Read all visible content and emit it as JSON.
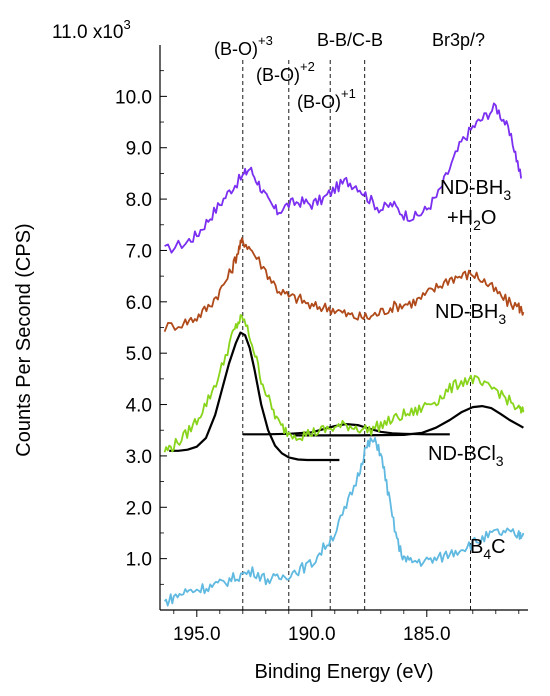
{
  "chart_data": {
    "type": "line",
    "title": "",
    "xlabel": "Binding Energy (eV)",
    "ylabel": "Counts Per Second (CPS)",
    "xlim": [
      196.6,
      180.6
    ],
    "x_reversed": true,
    "ylim": [
      0,
      11.0
    ],
    "y_scale_label": "11.0 x10",
    "y_scale_exponent": "3",
    "x_ticks": [
      {
        "value": 195.0,
        "label": "195.0"
      },
      {
        "value": 190.0,
        "label": "190.0"
      },
      {
        "value": 185.0,
        "label": "185.0"
      }
    ],
    "y_ticks": [
      {
        "value": 1.0,
        "label": "1.0"
      },
      {
        "value": 2.0,
        "label": "2.0"
      },
      {
        "value": 3.0,
        "label": "3.0"
      },
      {
        "value": 4.0,
        "label": "4.0"
      },
      {
        "value": 5.0,
        "label": "5.0"
      },
      {
        "value": 6.0,
        "label": "6.0"
      },
      {
        "value": 7.0,
        "label": "7.0"
      },
      {
        "value": 8.0,
        "label": "8.0"
      },
      {
        "value": 9.0,
        "label": "9.0"
      },
      {
        "value": 10.0,
        "label": "10.0"
      }
    ],
    "grid": false,
    "reference_lines": [
      {
        "x": 193.0,
        "label": "(B-O)",
        "sup": "+3"
      },
      {
        "x": 191.0,
        "label": "(B-O)",
        "sup": "+2"
      },
      {
        "x": 189.2,
        "label": "(B-O)",
        "sup": "+1"
      },
      {
        "x": 187.7,
        "label": "B-B/C-B",
        "sup": ""
      },
      {
        "x": 183.1,
        "label": "Br3p/?",
        "sup": ""
      }
    ],
    "series": [
      {
        "name": "ND-BH3 +H2O",
        "color": "#7b2ff0",
        "x": [
          196.4,
          195.5,
          195.0,
          194.5,
          194.0,
          193.5,
          193.0,
          192.7,
          192.3,
          191.9,
          191.5,
          191.0,
          190.5,
          190.0,
          189.5,
          189.0,
          188.5,
          188.0,
          187.5,
          187.0,
          186.5,
          186.0,
          185.5,
          185.0,
          184.5,
          184.0,
          183.5,
          183.0,
          182.5,
          182.0,
          181.6,
          181.2,
          180.9
        ],
        "y": [
          7.0,
          7.15,
          7.3,
          7.6,
          7.9,
          8.2,
          8.45,
          8.6,
          8.3,
          7.95,
          7.75,
          7.9,
          7.95,
          7.9,
          8.0,
          8.2,
          8.35,
          8.25,
          8.0,
          7.8,
          7.9,
          7.7,
          7.65,
          7.8,
          8.1,
          8.6,
          9.1,
          9.4,
          9.6,
          9.8,
          9.5,
          9.0,
          8.4
        ]
      },
      {
        "name": "ND-BH3",
        "color": "#b04a1a",
        "x": [
          196.4,
          195.5,
          195.0,
          194.5,
          194.0,
          193.5,
          193.2,
          193.0,
          192.6,
          192.0,
          191.5,
          191.0,
          190.5,
          190.0,
          189.5,
          189.0,
          188.5,
          188.0,
          187.5,
          187.0,
          186.5,
          186.0,
          185.5,
          185.0,
          184.5,
          184.0,
          183.5,
          183.0,
          182.5,
          182.0,
          181.5,
          181.0,
          180.8
        ],
        "y": [
          5.5,
          5.6,
          5.7,
          5.9,
          6.2,
          6.6,
          7.0,
          7.2,
          7.0,
          6.6,
          6.25,
          6.1,
          6.05,
          5.9,
          5.9,
          5.85,
          5.75,
          5.7,
          5.7,
          5.8,
          5.9,
          5.95,
          6.0,
          6.15,
          6.3,
          6.45,
          6.5,
          6.55,
          6.4,
          6.2,
          6.0,
          5.9,
          5.8
        ]
      },
      {
        "name": "ND-BCl3",
        "color": "#88d41a",
        "x": [
          196.4,
          196.0,
          195.5,
          195.0,
          194.5,
          194.0,
          193.5,
          193.2,
          193.0,
          192.6,
          192.2,
          191.8,
          191.4,
          191.0,
          190.5,
          190.0,
          189.5,
          189.0,
          188.5,
          188.0,
          187.5,
          187.0,
          186.5,
          186.0,
          185.5,
          185.0,
          184.5,
          184.0,
          183.5,
          183.0,
          182.5,
          182.0,
          181.5,
          181.0,
          180.8
        ],
        "y": [
          3.1,
          3.2,
          3.4,
          3.7,
          4.1,
          4.6,
          5.3,
          5.6,
          5.7,
          5.2,
          4.5,
          4.0,
          3.6,
          3.45,
          3.4,
          3.45,
          3.5,
          3.55,
          3.6,
          3.55,
          3.5,
          3.6,
          3.7,
          3.8,
          3.85,
          4.0,
          4.1,
          4.3,
          4.45,
          4.5,
          4.35,
          4.3,
          4.1,
          3.9,
          3.85
        ]
      },
      {
        "name": "B4C",
        "color": "#5fb9e0",
        "x": [
          196.4,
          196.0,
          195.5,
          195.0,
          194.5,
          194.0,
          193.5,
          193.0,
          192.5,
          192.0,
          191.5,
          191.0,
          190.5,
          190.0,
          189.5,
          189.0,
          188.5,
          188.0,
          187.7,
          187.4,
          187.1,
          186.8,
          186.5,
          186.2,
          185.9,
          185.5,
          185.0,
          184.5,
          184.0,
          183.5,
          183.0,
          182.5,
          182.0,
          181.5,
          181.0,
          180.8
        ],
        "y": [
          0.15,
          0.25,
          0.35,
          0.4,
          0.45,
          0.5,
          0.6,
          0.7,
          0.75,
          0.6,
          0.6,
          0.7,
          0.8,
          0.9,
          1.2,
          1.5,
          2.0,
          2.6,
          3.1,
          3.3,
          3.2,
          2.6,
          1.8,
          1.2,
          0.95,
          0.95,
          0.95,
          1.0,
          1.1,
          1.2,
          1.3,
          1.4,
          1.5,
          1.5,
          1.45,
          1.5
        ]
      }
    ],
    "fits": [
      {
        "name": "fit-peak-b-o-3",
        "color": "#000000",
        "x": [
          196.2,
          195.8,
          195.4,
          195.0,
          194.6,
          194.2,
          193.9,
          193.6,
          193.3,
          193.1,
          192.9,
          192.7,
          192.5,
          192.2,
          191.9,
          191.6,
          191.3,
          191.0,
          190.6,
          190.2,
          189.8,
          189.4,
          189.0,
          188.8
        ],
        "y": [
          3.1,
          3.1,
          3.12,
          3.18,
          3.35,
          3.8,
          4.3,
          4.8,
          5.2,
          5.4,
          5.35,
          5.1,
          4.7,
          4.0,
          3.5,
          3.2,
          3.05,
          2.97,
          2.93,
          2.92,
          2.92,
          2.92,
          2.92,
          2.92
        ]
      },
      {
        "name": "fit-peak-b-o-1",
        "color": "#000000",
        "x": [
          193.0,
          192.0,
          191.0,
          190.0,
          189.5,
          189.0,
          188.5,
          188.0,
          187.5,
          187.0,
          186.5,
          186.0,
          185.0,
          184.0
        ],
        "y": [
          3.42,
          3.42,
          3.43,
          3.46,
          3.52,
          3.58,
          3.62,
          3.6,
          3.53,
          3.47,
          3.44,
          3.43,
          3.42,
          3.42
        ]
      },
      {
        "name": "fit-peak-br3p",
        "color": "#000000",
        "x": [
          190.8,
          188.0,
          186.0,
          185.2,
          184.6,
          184.0,
          183.5,
          183.0,
          182.6,
          182.2,
          181.8,
          181.4,
          181.0,
          180.8
        ],
        "y": [
          3.4,
          3.4,
          3.41,
          3.45,
          3.55,
          3.7,
          3.85,
          3.95,
          3.97,
          3.93,
          3.82,
          3.7,
          3.6,
          3.55
        ]
      }
    ],
    "series_labels": [
      {
        "name": "ND-BH3 +H2O",
        "line1_main": "ND-BH",
        "line1_sub": "3",
        "line2_main": "+H",
        "line2_sub": "2",
        "line2_tail": "O"
      },
      {
        "name": "ND-BH3",
        "main": "ND-BH",
        "sub": "3"
      },
      {
        "name": "ND-BCl3",
        "main": "ND-BCl",
        "sub": "3"
      },
      {
        "name": "B4C",
        "main": "B",
        "sub": "4",
        "tail": "C"
      }
    ]
  }
}
